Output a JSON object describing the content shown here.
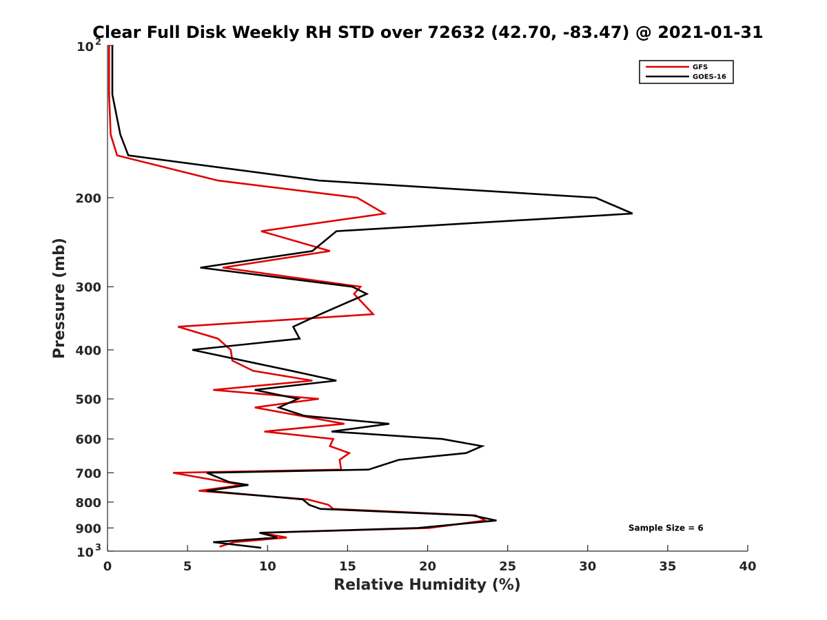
{
  "chart_data": {
    "type": "line",
    "title": "Clear Full Disk Weekly RH STD over 72632 (42.70, -83.47) @ 2021-01-31",
    "xlabel": "Relative Humidity (%)",
    "ylabel": "Pressure (mb)",
    "xlim": [
      0,
      40
    ],
    "ylim": [
      100,
      1000
    ],
    "yscale": "log",
    "y_reversed": true,
    "grid": false,
    "legend_position": "top-right",
    "x_ticks": [
      0,
      5,
      10,
      15,
      20,
      25,
      30,
      35,
      40
    ],
    "x_tick_labels": [
      "0",
      "5",
      "10",
      "15",
      "20",
      "25",
      "30",
      "35",
      "40"
    ],
    "y_ticks": [
      100,
      200,
      300,
      400,
      500,
      600,
      700,
      800,
      900,
      1000
    ],
    "y_tick_labels": [
      {
        "value": 100,
        "base": "10",
        "exp": "2"
      },
      {
        "value": 200,
        "base": "200",
        "exp": ""
      },
      {
        "value": 300,
        "base": "300",
        "exp": ""
      },
      {
        "value": 400,
        "base": "400",
        "exp": ""
      },
      {
        "value": 500,
        "base": "500",
        "exp": ""
      },
      {
        "value": 600,
        "base": "600",
        "exp": ""
      },
      {
        "value": 700,
        "base": "700",
        "exp": ""
      },
      {
        "value": 800,
        "base": "800",
        "exp": ""
      },
      {
        "value": 900,
        "base": "900",
        "exp": ""
      },
      {
        "value": 1000,
        "base": "10",
        "exp": "3"
      }
    ],
    "series": [
      {
        "name": "GFS",
        "color": "#e00000",
        "points": [
          [
            0.1,
            100
          ],
          [
            0.1,
            125
          ],
          [
            0.2,
            150
          ],
          [
            0.6,
            165
          ],
          [
            6.9,
            185
          ],
          [
            15.6,
            200
          ],
          [
            17.3,
            215
          ],
          [
            9.6,
            233
          ],
          [
            13.9,
            255
          ],
          [
            7.2,
            275
          ],
          [
            15.8,
            300
          ],
          [
            15.4,
            310
          ],
          [
            16.6,
            340
          ],
          [
            4.4,
            360
          ],
          [
            6.9,
            380
          ],
          [
            7.7,
            400
          ],
          [
            7.8,
            420
          ],
          [
            9.1,
            440
          ],
          [
            12.8,
            460
          ],
          [
            6.6,
            480
          ],
          [
            13.2,
            500
          ],
          [
            9.2,
            520
          ],
          [
            14.8,
            560
          ],
          [
            9.8,
            580
          ],
          [
            14.1,
            600
          ],
          [
            13.9,
            620
          ],
          [
            15.1,
            640
          ],
          [
            14.5,
            660
          ],
          [
            14.6,
            690
          ],
          [
            4.1,
            700
          ],
          [
            8.4,
            740
          ],
          [
            5.7,
            760
          ],
          [
            12.5,
            790
          ],
          [
            13.8,
            810
          ],
          [
            14.1,
            825
          ],
          [
            23.0,
            850
          ],
          [
            23.6,
            870
          ],
          [
            20.1,
            900
          ],
          [
            9.6,
            920
          ],
          [
            11.2,
            940
          ],
          [
            7.9,
            960
          ],
          [
            7.0,
            980
          ]
        ]
      },
      {
        "name": "GOES-16",
        "color": "#000000",
        "points": [
          [
            0.3,
            100
          ],
          [
            0.3,
            125
          ],
          [
            0.8,
            150
          ],
          [
            1.3,
            165
          ],
          [
            13.2,
            185
          ],
          [
            30.5,
            200
          ],
          [
            32.8,
            215
          ],
          [
            14.3,
            233
          ],
          [
            12.8,
            255
          ],
          [
            5.8,
            275
          ],
          [
            15.3,
            300
          ],
          [
            16.2,
            310
          ],
          [
            13.3,
            340
          ],
          [
            11.6,
            360
          ],
          [
            12.0,
            380
          ],
          [
            5.3,
            400
          ],
          [
            11.5,
            440
          ],
          [
            14.3,
            460
          ],
          [
            9.2,
            480
          ],
          [
            11.9,
            500
          ],
          [
            10.7,
            520
          ],
          [
            12.3,
            540
          ],
          [
            17.6,
            560
          ],
          [
            14.0,
            580
          ],
          [
            20.9,
            600
          ],
          [
            23.4,
            620
          ],
          [
            22.4,
            640
          ],
          [
            18.2,
            660
          ],
          [
            16.3,
            690
          ],
          [
            6.2,
            700
          ],
          [
            7.6,
            730
          ],
          [
            8.8,
            740
          ],
          [
            6.2,
            760
          ],
          [
            12.2,
            790
          ],
          [
            12.6,
            810
          ],
          [
            13.3,
            825
          ],
          [
            22.8,
            850
          ],
          [
            24.3,
            870
          ],
          [
            19.4,
            900
          ],
          [
            9.5,
            920
          ],
          [
            10.6,
            940
          ],
          [
            6.6,
            960
          ],
          [
            9.6,
            985
          ]
        ]
      }
    ],
    "annotations": [
      {
        "text": "Sample Size = 6",
        "x": 35,
        "y": 900
      }
    ]
  }
}
